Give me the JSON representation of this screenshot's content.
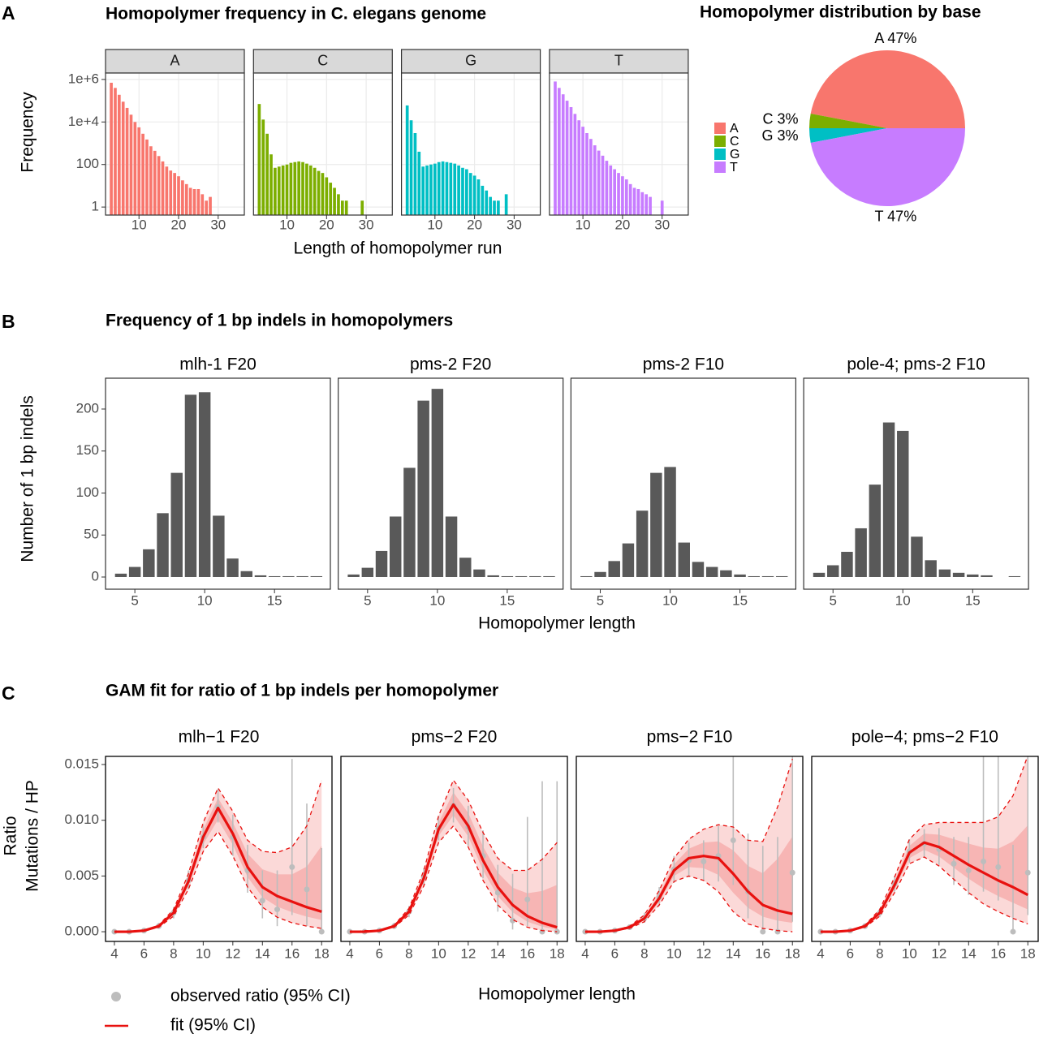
{
  "chart_data": [
    {
      "type": "bar",
      "panel": "A",
      "title": "Homopolymer frequency in C. elegans genome",
      "xlabel": "Length of homopolymer run",
      "ylabel": [
        "Frequency"
      ],
      "log_scale": true,
      "grid": true,
      "legend": "right",
      "x": [
        3,
        4,
        5,
        6,
        7,
        8,
        9,
        10,
        11,
        12,
        13,
        14,
        15,
        16,
        17,
        18,
        19,
        20,
        21,
        22,
        23,
        24,
        25,
        26,
        27,
        28,
        29,
        30
      ],
      "xlim": [
        1.55,
        36.6
      ],
      "xticks": [
        10,
        20,
        30
      ],
      "ylim": [
        0.42,
        2000000
      ],
      "yticks": [
        1,
        100,
        {
          "value": 10000,
          "label": "1e+4"
        },
        {
          "value": 1000000,
          "label": "1e+6"
        }
      ],
      "series": [
        {
          "name": "A",
          "color": "#f8766d",
          "values": [
            700000,
            400000,
            190000,
            90000,
            46000,
            22000,
            10000,
            5600,
            2800,
            1500,
            720,
            440,
            250,
            140,
            80,
            52,
            40,
            28,
            18,
            12,
            8,
            7,
            7,
            4,
            2,
            3,
            null,
            null
          ]
        },
        {
          "name": "C",
          "color": "#7cae00",
          "values": [
            70000,
            13000,
            2800,
            300,
            70,
            80,
            90,
            100,
            120,
            130,
            140,
            130,
            110,
            90,
            70,
            50,
            40,
            25,
            14,
            8,
            4,
            2,
            2,
            null,
            null,
            null,
            2,
            null
          ]
        },
        {
          "name": "G",
          "color": "#00bfc4",
          "values": [
            60000,
            12000,
            3000,
            400,
            80,
            90,
            100,
            110,
            130,
            140,
            130,
            120,
            110,
            90,
            70,
            60,
            40,
            30,
            20,
            10,
            6,
            3,
            2,
            2,
            null,
            4,
            null,
            null
          ]
        },
        {
          "name": "T",
          "color": "#c77cff",
          "values": [
            800000,
            400000,
            200000,
            100000,
            50000,
            24000,
            12000,
            6000,
            3000,
            1600,
            800,
            450,
            260,
            150,
            90,
            60,
            40,
            28,
            20,
            12,
            8,
            7,
            5,
            4,
            3,
            null,
            null,
            2
          ]
        }
      ]
    },
    {
      "type": "pie",
      "title": "Homopolymer distribution by base",
      "categories": [
        "A",
        "C",
        "G",
        "T"
      ],
      "values": [
        47,
        3,
        3,
        47
      ],
      "value_labels": [
        "A 47%",
        "C 3%",
        "G 3%",
        "T 47%"
      ],
      "colors": [
        "#f8766d",
        "#7cae00",
        "#00bfc4",
        "#c77cff"
      ]
    },
    {
      "type": "bar",
      "panel": "B",
      "title": "Frequency of 1 bp indels in homopolymers",
      "xlabel": "Homopolymer length",
      "ylabel": [
        "Number of 1 bp indels"
      ],
      "color": "#595959",
      "x": [
        4,
        5,
        6,
        7,
        8,
        9,
        10,
        11,
        12,
        13,
        14,
        15,
        16,
        17,
        18
      ],
      "xlim": [
        2.9,
        19.0
      ],
      "xticks": [
        5,
        10,
        15
      ],
      "ylim": [
        -14.5,
        236.7
      ],
      "yticks": [
        0,
        50,
        100,
        150,
        200
      ],
      "facets": [
        {
          "title": "mlh-1 F20",
          "values": [
            4,
            12,
            33,
            76,
            124,
            217,
            220,
            73,
            22,
            7,
            2,
            1,
            1,
            1,
            1
          ]
        },
        {
          "title": "pms-2 F20",
          "values": [
            3,
            11,
            31,
            72,
            130,
            210,
            224,
            72,
            23,
            9,
            2,
            1,
            1,
            1,
            1
          ]
        },
        {
          "title": "pms-2 F10",
          "values": [
            1,
            6,
            19,
            40,
            79,
            124,
            131,
            41,
            18,
            12,
            8,
            3,
            1,
            1,
            1
          ]
        },
        {
          "title": "pole-4; pms-2 F10",
          "values": [
            5,
            14,
            30,
            58,
            110,
            184,
            174,
            48,
            20,
            9,
            5,
            3,
            2,
            null,
            1
          ]
        }
      ]
    },
    {
      "type": "line",
      "panel": "C",
      "title": "GAM fit for ratio of 1 bp indels per homopolymer",
      "xlabel": "Homopolymer length",
      "ylabel": [
        "Ratio",
        "Mutations / HP"
      ],
      "x": [
        4,
        5,
        6,
        7,
        8,
        9,
        10,
        11,
        12,
        13,
        14,
        15,
        16,
        17,
        18
      ],
      "xlim": [
        3.4,
        18.7
      ],
      "xticks": [
        4,
        6,
        8,
        10,
        12,
        14,
        16,
        18
      ],
      "ylim": [
        -0.00087,
        0.01573
      ],
      "yticks": [
        {
          "value": 0,
          "label": "0.000"
        },
        0.005,
        {
          "value": 0.01,
          "label": "0.010"
        },
        0.015
      ],
      "legend": [
        {
          "name": "observed ratio (95% CI)",
          "color": "#bdbdbd"
        },
        {
          "name": "fit (95% CI)",
          "color": "#e8110f"
        }
      ],
      "facets": [
        {
          "title": "mlh−1 F20",
          "fit": [
            0,
            0,
            0.0001,
            0.0005,
            0.0017,
            0.0045,
            0.0085,
            0.0111,
            0.0088,
            0.0058,
            0.004,
            0.0032,
            0.0027,
            0.0022,
            0.0018
          ],
          "fit_lower": [
            0,
            0,
            0.0001,
            0.0004,
            0.0014,
            0.0038,
            0.0072,
            0.009,
            0.0068,
            0.004,
            0.0022,
            0.0013,
            0.0008,
            0.0005,
            0.0003
          ],
          "fit_upper": [
            0,
            0,
            0.0001,
            0.0006,
            0.002,
            0.0052,
            0.0098,
            0.0129,
            0.0108,
            0.0082,
            0.0072,
            0.0071,
            0.0076,
            0.0095,
            0.0136
          ],
          "observed": [
            0,
            0,
            0.0001,
            0.0005,
            0.0017,
            0.0046,
            0.0085,
            0.0112,
            0.0085,
            0.0055,
            0.0028,
            0.002,
            0.0058,
            0.0038,
            0
          ],
          "observed_lower": [
            0,
            0,
            0,
            0.0003,
            0.0012,
            0.0038,
            0.0075,
            0.0098,
            0.0068,
            0.0035,
            0.0012,
            0.0005,
            0.0015,
            0.0005,
            0
          ],
          "observed_upper": [
            0.0001,
            0.0001,
            0.0002,
            0.0008,
            0.0022,
            0.0055,
            0.0096,
            0.0128,
            0.0105,
            0.0078,
            0.0055,
            0.0055,
            0.0155,
            0.0115,
            0.0075
          ]
        },
        {
          "title": "pms−2 F20",
          "fit": [
            0,
            0,
            0.0001,
            0.0005,
            0.0018,
            0.0048,
            0.0092,
            0.0114,
            0.0095,
            0.0064,
            0.004,
            0.0024,
            0.0014,
            0.0008,
            0.0004
          ],
          "fit_lower": [
            0,
            0,
            0.0001,
            0.0004,
            0.0015,
            0.0041,
            0.008,
            0.0095,
            0.0076,
            0.0046,
            0.0024,
            0.0011,
            0.0004,
            0.0001,
            0
          ],
          "fit_upper": [
            0,
            0.0001,
            0.0001,
            0.0006,
            0.0021,
            0.0055,
            0.0104,
            0.0136,
            0.0118,
            0.0089,
            0.0066,
            0.0055,
            0.0055,
            0.0065,
            0.008
          ],
          "observed": [
            0,
            0,
            0.0001,
            0.0005,
            0.0018,
            0.0049,
            0.0093,
            0.0113,
            0.0094,
            0.0068,
            0.0035,
            0.001,
            0.0029,
            0,
            0
          ],
          "observed_lower": [
            0,
            0,
            0,
            0.0003,
            0.0013,
            0.0041,
            0.0082,
            0.0098,
            0.0077,
            0.0048,
            0.0018,
            0.0002,
            0.0005,
            0,
            0
          ],
          "observed_upper": [
            0.0001,
            0.0001,
            0.0002,
            0.0008,
            0.0023,
            0.0057,
            0.0104,
            0.0129,
            0.0113,
            0.0091,
            0.006,
            0.0052,
            0.0103,
            0.0135,
            0.0135
          ]
        },
        {
          "title": "pms−2 F10",
          "fit": [
            0,
            0,
            0.0001,
            0.0004,
            0.0012,
            0.003,
            0.0055,
            0.0066,
            0.0068,
            0.0066,
            0.0052,
            0.0036,
            0.0024,
            0.0019,
            0.0016
          ],
          "fit_lower": [
            0,
            0,
            0.0001,
            0.0003,
            0.0009,
            0.0024,
            0.0045,
            0.005,
            0.0046,
            0.0036,
            0.0018,
            0.0007,
            0.0003,
            0.0001,
            0
          ],
          "fit_upper": [
            0,
            0,
            0.0001,
            0.0005,
            0.0015,
            0.0037,
            0.0066,
            0.0083,
            0.0092,
            0.0096,
            0.0094,
            0.0082,
            0.0081,
            0.0112,
            0.0155
          ],
          "observed": [
            0,
            0,
            0.0001,
            0.0004,
            0.0012,
            0.0031,
            0.0056,
            0.0064,
            0.0063,
            0.0068,
            0.0082,
            0.0036,
            0,
            0,
            0.0053
          ],
          "observed_lower": [
            0,
            0,
            0,
            0.0002,
            0.0008,
            0.0023,
            0.0044,
            0.0049,
            0.0046,
            0.0045,
            0.0042,
            0.0012,
            0,
            0,
            0.0009
          ],
          "observed_upper": [
            0.0001,
            0.0001,
            0.0002,
            0.0006,
            0.0017,
            0.004,
            0.0068,
            0.008,
            0.0082,
            0.0095,
            0.016,
            0.0088,
            0.0077,
            0.0085,
            0.0165
          ]
        },
        {
          "title": "pole−4; pms−2 F10",
          "fit": [
            0,
            0,
            0.0001,
            0.0005,
            0.0017,
            0.0042,
            0.0071,
            0.008,
            0.0076,
            0.0068,
            0.006,
            0.0053,
            0.0046,
            0.004,
            0.0033
          ],
          "fit_lower": [
            0,
            0,
            0.0001,
            0.0004,
            0.0014,
            0.0035,
            0.0061,
            0.0067,
            0.0059,
            0.0047,
            0.0035,
            0.0025,
            0.0018,
            0.0012,
            0.0007
          ],
          "fit_upper": [
            0,
            0,
            0.0001,
            0.0006,
            0.002,
            0.0049,
            0.0083,
            0.0096,
            0.0098,
            0.0098,
            0.0098,
            0.0098,
            0.0103,
            0.0122,
            0.0158
          ],
          "observed": [
            0,
            0,
            0.0001,
            0.0005,
            0.0017,
            0.0043,
            0.0072,
            0.0079,
            0.0074,
            0.0061,
            0.0055,
            0.0063,
            0.0058,
            0,
            0.0053
          ],
          "observed_lower": [
            0,
            0,
            0,
            0.0003,
            0.0013,
            0.0036,
            0.0062,
            0.0067,
            0.006,
            0.0042,
            0.0033,
            0.0036,
            0.0028,
            0,
            0.0015
          ],
          "observed_upper": [
            0.0001,
            0.0001,
            0.0002,
            0.0007,
            0.0021,
            0.005,
            0.0083,
            0.0092,
            0.0093,
            0.0085,
            0.0085,
            0.016,
            0.016,
            0.0078,
            0.016
          ]
        }
      ]
    }
  ]
}
